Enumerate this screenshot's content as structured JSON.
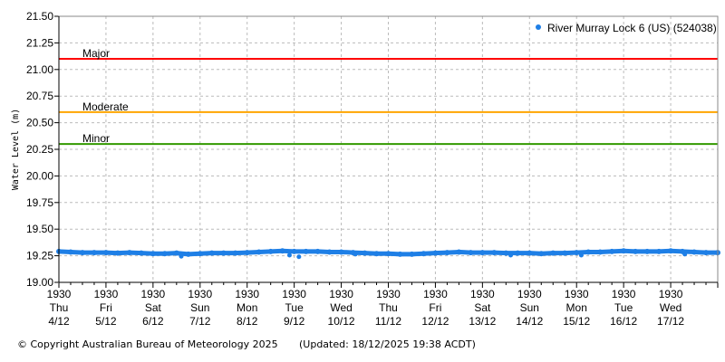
{
  "chart_data": {
    "type": "scatter",
    "ylabel": "Water Level (m)",
    "ylim": [
      19.0,
      21.5
    ],
    "yticks": [
      "19.00",
      "19.25",
      "19.50",
      "19.75",
      "20.00",
      "20.25",
      "20.50",
      "20.75",
      "21.00",
      "21.25",
      "21.50"
    ],
    "xlim": [
      "2025-12-04 19:30",
      "2025-12-18 19:30"
    ],
    "xticks": [
      {
        "time": "1930",
        "day": "Thu",
        "date": "4/12"
      },
      {
        "time": "1930",
        "day": "Fri",
        "date": "5/12"
      },
      {
        "time": "1930",
        "day": "Sat",
        "date": "6/12"
      },
      {
        "time": "1930",
        "day": "Sun",
        "date": "7/12"
      },
      {
        "time": "1930",
        "day": "Mon",
        "date": "8/12"
      },
      {
        "time": "1930",
        "day": "Tue",
        "date": "9/12"
      },
      {
        "time": "1930",
        "day": "Wed",
        "date": "10/12"
      },
      {
        "time": "1930",
        "day": "Thu",
        "date": "11/12"
      },
      {
        "time": "1930",
        "day": "Fri",
        "date": "12/12"
      },
      {
        "time": "1930",
        "day": "Sat",
        "date": "13/12"
      },
      {
        "time": "1930",
        "day": "Sun",
        "date": "14/12"
      },
      {
        "time": "1930",
        "day": "Mon",
        "date": "15/12"
      },
      {
        "time": "1930",
        "day": "Tue",
        "date": "16/12"
      },
      {
        "time": "1930",
        "day": "Wed",
        "date": "17/12"
      }
    ],
    "grid": true,
    "legend_position": "top-right",
    "thresholds": [
      {
        "label": "Major",
        "value": 21.1,
        "color": "#ff0000"
      },
      {
        "label": "Moderate",
        "value": 20.6,
        "color": "#ffa500"
      },
      {
        "label": "Minor",
        "value": 20.3,
        "color": "#339900"
      }
    ],
    "series": [
      {
        "name": "River Murray Lock 6 (US) (524038)",
        "color": "#1e7fe6",
        "interval_hours": 6,
        "values": [
          19.29,
          19.285,
          19.28,
          19.28,
          19.28,
          19.275,
          19.28,
          19.275,
          19.27,
          19.27,
          19.275,
          19.265,
          19.27,
          19.275,
          19.275,
          19.275,
          19.28,
          19.285,
          19.29,
          19.295,
          19.29,
          19.29,
          19.29,
          19.285,
          19.285,
          19.28,
          19.275,
          19.27,
          19.27,
          19.265,
          19.265,
          19.27,
          19.275,
          19.28,
          19.285,
          19.28,
          19.28,
          19.28,
          19.275,
          19.275,
          19.275,
          19.27,
          19.275,
          19.275,
          19.28,
          19.285,
          19.285,
          19.29,
          19.295,
          19.29,
          19.29,
          19.29,
          19.295,
          19.29,
          19.285,
          19.28,
          19.28
        ]
      }
    ]
  },
  "footer": {
    "copyright": "© Copyright Australian Bureau of Meteorology 2025",
    "updated": "(Updated: 18/12/2025 19:38 ACDT)"
  }
}
